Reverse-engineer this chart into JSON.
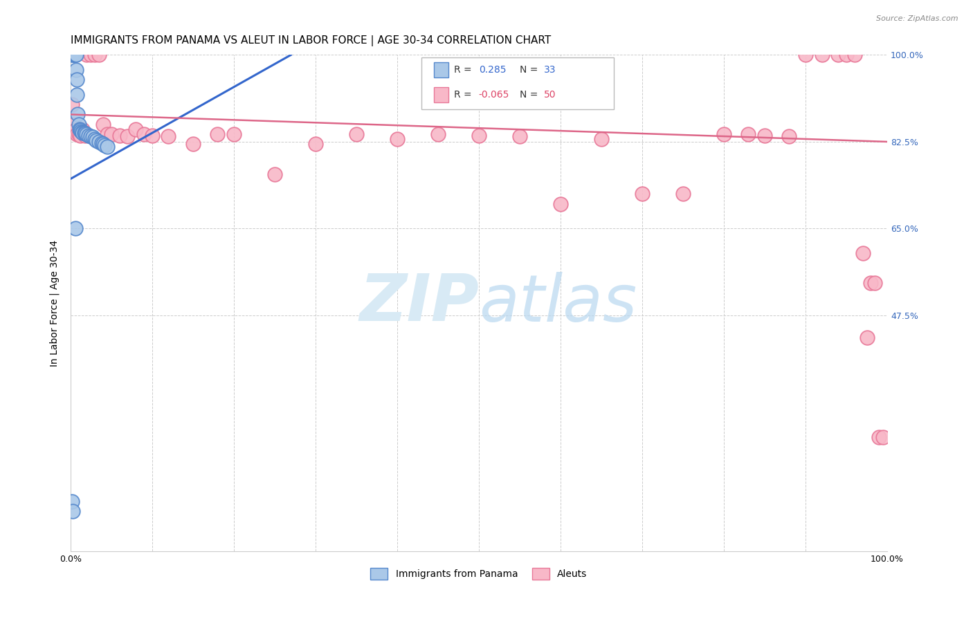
{
  "title": "IMMIGRANTS FROM PANAMA VS ALEUT IN LABOR FORCE | AGE 30-34 CORRELATION CHART",
  "source": "Source: ZipAtlas.com",
  "ylabel": "In Labor Force | Age 30-34",
  "ytick_values": [
    0.0,
    0.475,
    0.65,
    0.825,
    1.0
  ],
  "right_ytick_labels": [
    "100.0%",
    "82.5%",
    "65.0%",
    "47.5%"
  ],
  "right_ytick_values": [
    1.0,
    0.825,
    0.65,
    0.475
  ],
  "xlim": [
    0.0,
    1.0
  ],
  "ylim": [
    0.0,
    1.0
  ],
  "legend_blue_label": "Immigrants from Panama",
  "legend_pink_label": "Aleuts",
  "blue_r_text": "R =  0.285",
  "blue_n_text": "N = 33",
  "pink_r_text": "R = -0.065",
  "pink_n_text": "N = 50",
  "blue_fill": "#aac8e8",
  "blue_edge": "#5588cc",
  "pink_fill": "#f8b8c8",
  "pink_edge": "#e87898",
  "blue_line": "#3366cc",
  "pink_line": "#dd6688",
  "watermark_color": "#d8eaf5",
  "background_color": "#ffffff",
  "grid_color": "#cccccc",
  "blue_scatter_x": [
    0.002,
    0.003,
    0.004,
    0.005,
    0.005,
    0.006,
    0.007,
    0.007,
    0.008,
    0.008,
    0.009,
    0.01,
    0.011,
    0.012,
    0.013,
    0.015,
    0.015,
    0.017,
    0.018,
    0.02,
    0.022,
    0.025,
    0.027,
    0.03,
    0.032,
    0.035,
    0.038,
    0.04,
    0.042,
    0.045,
    0.002,
    0.003,
    0.006
  ],
  "blue_scatter_y": [
    1.0,
    1.0,
    1.0,
    1.0,
    1.0,
    1.0,
    1.0,
    0.97,
    0.95,
    0.92,
    0.88,
    0.86,
    0.85,
    0.848,
    0.846,
    0.845,
    0.843,
    0.843,
    0.842,
    0.84,
    0.838,
    0.836,
    0.834,
    0.83,
    0.828,
    0.825,
    0.822,
    0.82,
    0.818,
    0.815,
    0.1,
    0.08,
    0.65
  ],
  "pink_scatter_x": [
    0.002,
    0.004,
    0.006,
    0.008,
    0.01,
    0.012,
    0.015,
    0.018,
    0.02,
    0.025,
    0.03,
    0.035,
    0.04,
    0.045,
    0.05,
    0.06,
    0.07,
    0.08,
    0.09,
    0.1,
    0.12,
    0.15,
    0.18,
    0.2,
    0.25,
    0.3,
    0.35,
    0.4,
    0.45,
    0.5,
    0.55,
    0.6,
    0.65,
    0.7,
    0.75,
    0.8,
    0.83,
    0.85,
    0.88,
    0.9,
    0.92,
    0.94,
    0.95,
    0.96,
    0.97,
    0.975,
    0.98,
    0.985,
    0.99,
    0.995
  ],
  "pink_scatter_y": [
    0.9,
    0.86,
    0.848,
    0.84,
    0.84,
    0.838,
    0.85,
    0.838,
    1.0,
    1.0,
    1.0,
    1.0,
    0.86,
    0.84,
    0.84,
    0.838,
    0.836,
    0.85,
    0.84,
    0.838,
    0.836,
    0.82,
    0.84,
    0.84,
    0.76,
    0.82,
    0.84,
    0.83,
    0.84,
    0.838,
    0.836,
    0.7,
    0.83,
    0.72,
    0.72,
    0.84,
    0.84,
    0.838,
    0.836,
    1.0,
    1.0,
    1.0,
    1.0,
    1.0,
    0.6,
    0.43,
    0.54,
    0.54,
    0.23,
    0.23
  ],
  "blue_trendline_x": [
    0.0,
    0.27
  ],
  "blue_trendline_y": [
    0.75,
    1.0
  ],
  "pink_trendline_x": [
    0.0,
    1.0
  ],
  "pink_trendline_y": [
    0.88,
    0.825
  ]
}
